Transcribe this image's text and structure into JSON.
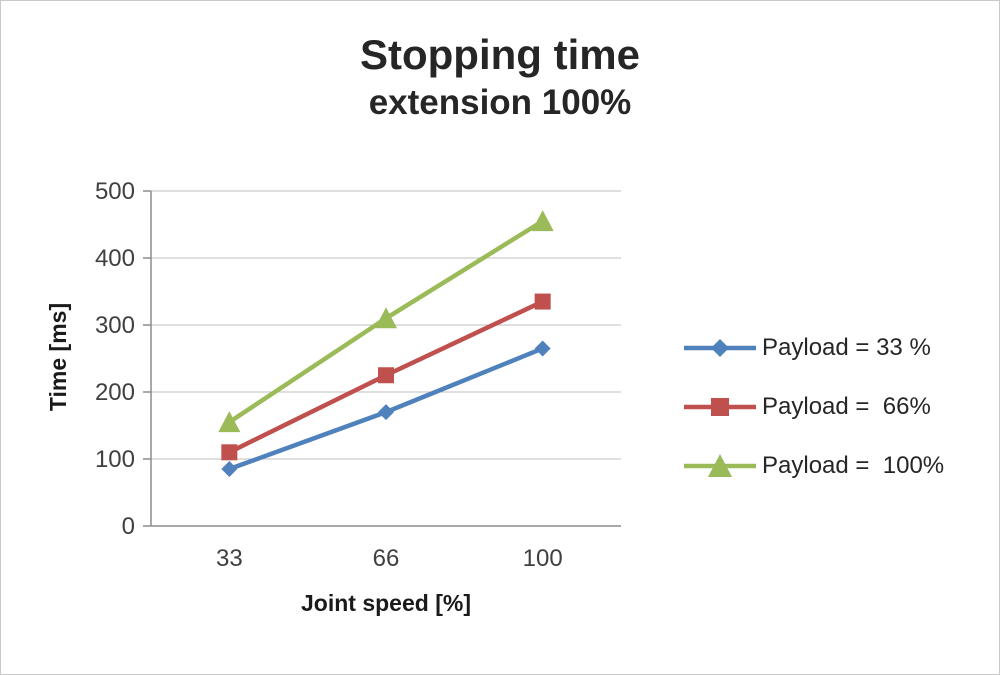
{
  "title": {
    "line1": "Stopping time",
    "line2": "extension 100%"
  },
  "chart_data": {
    "type": "line",
    "title": "Stopping time extension 100%",
    "categories": [
      "33",
      "66",
      "100"
    ],
    "series": [
      {
        "name": "Payload = 33 %",
        "color": "#4F81BD",
        "marker": "diamond",
        "values": [
          85,
          170,
          265
        ]
      },
      {
        "name": "Payload =  66%",
        "color": "#C0504D",
        "marker": "square",
        "values": [
          110,
          225,
          335
        ]
      },
      {
        "name": "Payload =  100%",
        "color": "#9BBB59",
        "marker": "triangle",
        "values": [
          155,
          310,
          455
        ]
      }
    ],
    "xlabel": "Joint speed [%]",
    "ylabel": "Time [ms]",
    "ylim": [
      0,
      500
    ],
    "ytick_step": 100,
    "yticks": [
      "0",
      "100",
      "200",
      "300",
      "400",
      "500"
    ],
    "grid": true,
    "legend_position": "right"
  }
}
